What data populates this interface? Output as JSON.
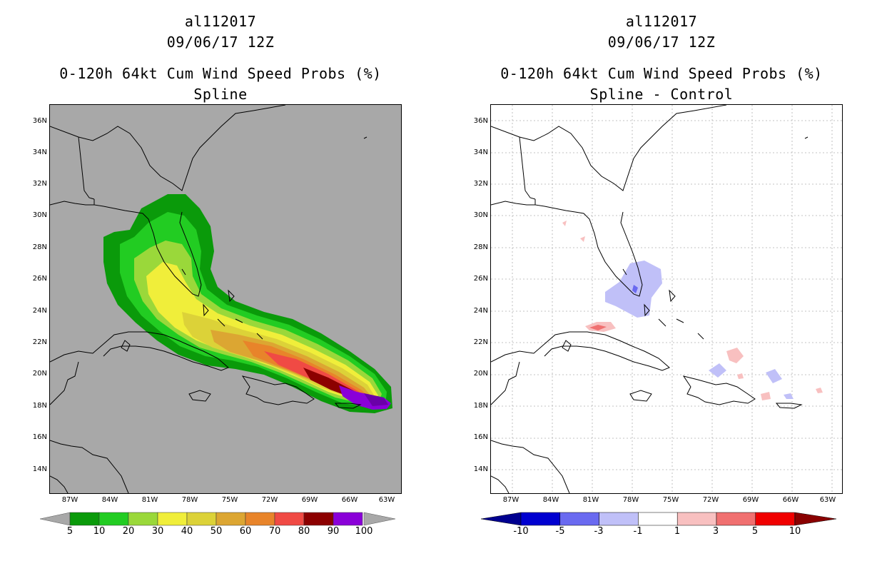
{
  "left": {
    "storm_id": "al112017",
    "datetime": "09/06/17 12Z",
    "product": "0-120h 64kt Cum Wind Speed Probs (%)",
    "subtitle": "Spline",
    "lat_labels": [
      "36N",
      "34N",
      "32N",
      "30N",
      "28N",
      "26N",
      "24N",
      "22N",
      "20N",
      "18N",
      "16N",
      "14N"
    ],
    "lon_labels": [
      "87W",
      "84W",
      "81W",
      "78W",
      "75W",
      "72W",
      "69W",
      "66W",
      "63W"
    ],
    "colorbar_labels": [
      "5",
      "10",
      "20",
      "30",
      "40",
      "50",
      "60",
      "70",
      "80",
      "90",
      "100"
    ],
    "colorbar_colors": [
      "#0a9a0a",
      "#22cc22",
      "#9ad83a",
      "#f0ee3a",
      "#dcd238",
      "#dca632",
      "#e8842a",
      "#f04a44",
      "#8c0000",
      "#8a00d8"
    ],
    "background_color": "#a8a8a8"
  },
  "right": {
    "storm_id": "al112017",
    "datetime": "09/06/17 12Z",
    "product": "0-120h 64kt Cum Wind Speed Probs (%)",
    "subtitle": "Spline - Control",
    "lat_labels": [
      "36N",
      "34N",
      "32N",
      "30N",
      "28N",
      "26N",
      "24N",
      "22N",
      "20N",
      "18N",
      "16N",
      "14N"
    ],
    "lon_labels": [
      "87W",
      "84W",
      "81W",
      "78W",
      "75W",
      "72W",
      "69W",
      "66W",
      "63W"
    ],
    "colorbar_labels": [
      "-10",
      "-5",
      "-3",
      "-1",
      "1",
      "3",
      "5",
      "10"
    ],
    "colorbar_colors": [
      "#0000d0",
      "#6a6af0",
      "#c0c0f8",
      "#ffffff",
      "#f8c0c0",
      "#f07070",
      "#f00000"
    ],
    "colorbar_end_colors": [
      "#000090",
      "#8a0000"
    ]
  }
}
